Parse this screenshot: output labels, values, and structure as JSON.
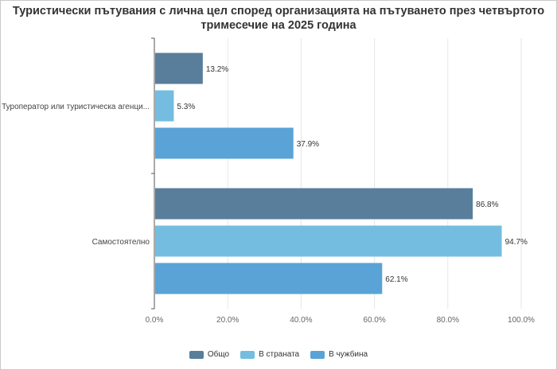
{
  "title": "Туристически пътувания с лична цел според организацията на пътуването през четвъртото тримесечие на 2025 година",
  "chart_data": {
    "type": "bar",
    "orientation": "horizontal",
    "title": "Туристически пътувания с лична цел според организацията на пътуването през четвъртото тримесечие на 2025 година",
    "categories": [
      "Туроператор или туристическа агенция",
      "Самостоятелно"
    ],
    "category_labels_shown": [
      "Туроператор или туристическа агенци...",
      "Самостоятелно"
    ],
    "series": [
      {
        "name": "Общо",
        "color": "#587e9b",
        "values": [
          13.2,
          86.8
        ]
      },
      {
        "name": "В страната",
        "color": "#74bde0",
        "values": [
          5.3,
          94.7
        ]
      },
      {
        "name": "В чужбина",
        "color": "#5aa3d6",
        "values": [
          37.9,
          62.1
        ]
      }
    ],
    "value_labels": [
      [
        "13.2%",
        "5.3%",
        "37.9%"
      ],
      [
        "86.8%",
        "94.7%",
        "62.1%"
      ]
    ],
    "xlim": [
      0,
      100
    ],
    "x_ticks": [
      0,
      20,
      40,
      60,
      80,
      100
    ],
    "x_tick_labels": [
      "0.0%",
      "20.0%",
      "40.0%",
      "60.0%",
      "80.0%",
      "100.0%"
    ],
    "grid": true,
    "legend_position": "bottom-center"
  }
}
